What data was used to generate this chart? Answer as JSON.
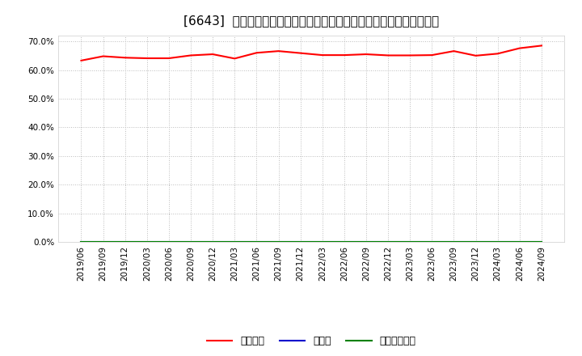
{
  "title": "[6643]  自己資本、のれん、繰延税金資産の総資産に対する比率の推移",
  "x_labels": [
    "2019/06",
    "2019/09",
    "2019/12",
    "2020/03",
    "2020/06",
    "2020/09",
    "2020/12",
    "2021/03",
    "2021/06",
    "2021/09",
    "2021/12",
    "2022/03",
    "2022/06",
    "2022/09",
    "2022/12",
    "2023/03",
    "2023/06",
    "2023/09",
    "2023/12",
    "2024/03",
    "2024/06",
    "2024/09"
  ],
  "equity_ratio": [
    0.633,
    0.648,
    0.643,
    0.641,
    0.641,
    0.651,
    0.655,
    0.64,
    0.66,
    0.666,
    0.659,
    0.652,
    0.652,
    0.655,
    0.651,
    0.651,
    0.652,
    0.666,
    0.65,
    0.657,
    0.676,
    0.685
  ],
  "noren_ratio": [
    0.0,
    0.0,
    0.0,
    0.0,
    0.0,
    0.0,
    0.0,
    0.0,
    0.0,
    0.0,
    0.0,
    0.0,
    0.0,
    0.0,
    0.0,
    0.0,
    0.0,
    0.0,
    0.0,
    0.0,
    0.0,
    0.0
  ],
  "deferred_tax_ratio": [
    0.0,
    0.0,
    0.0,
    0.0,
    0.0,
    0.0,
    0.0,
    0.0,
    0.0,
    0.0,
    0.0,
    0.0,
    0.0,
    0.0,
    0.0,
    0.0,
    0.0,
    0.0,
    0.0,
    0.0,
    0.0,
    0.0
  ],
  "equity_color": "#ff0000",
  "noren_color": "#0000cc",
  "deferred_tax_color": "#008000",
  "bg_color": "#ffffff",
  "plot_bg_color": "#ffffff",
  "grid_color": "#bbbbbb",
  "ylim": [
    0.0,
    0.72
  ],
  "yticks": [
    0.0,
    0.1,
    0.2,
    0.3,
    0.4,
    0.5,
    0.6,
    0.7
  ],
  "legend_labels": [
    "自己資本",
    "のれん",
    "繰延税金資産"
  ],
  "title_fontsize": 11,
  "axis_fontsize": 7.5,
  "legend_fontsize": 9
}
